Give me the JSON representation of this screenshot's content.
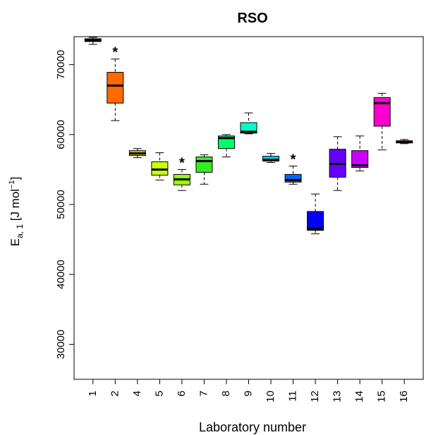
{
  "chart_data": {
    "type": "box",
    "title": "RSO",
    "xlabel": "Laboratory number",
    "ylabel_main": "E",
    "ylabel_sub": "a, 1",
    "ylabel_unit_open": " [J mol",
    "ylabel_unit_sup": "−1",
    "ylabel_unit_close": "]",
    "ylim": [
      25000,
      74000
    ],
    "yticks": [
      30000,
      40000,
      50000,
      60000,
      70000
    ],
    "ytick_labels": [
      "30000",
      "40000",
      "50000",
      "60000",
      "70000"
    ],
    "categories": [
      "1",
      "2",
      "4",
      "5",
      "6",
      "7",
      "8",
      "9",
      "10",
      "11",
      "12",
      "13",
      "14",
      "15",
      "16"
    ],
    "boxes": [
      {
        "lab": "1",
        "color": "#d8000c",
        "whisker_low": 72900,
        "q1": 73300,
        "median": 73500,
        "q3": 73700,
        "whisker_high": 73900,
        "flag": ""
      },
      {
        "lab": "2",
        "color": "#ff6a00",
        "whisker_low": 62000,
        "q1": 64500,
        "median": 67000,
        "q3": 68900,
        "whisker_high": 70800,
        "flag": "*"
      },
      {
        "lab": "4",
        "color": "#d6bf1c",
        "whisker_low": 56700,
        "q1": 57000,
        "median": 57300,
        "q3": 57700,
        "whisker_high": 58000,
        "flag": ""
      },
      {
        "lab": "5",
        "color": "#ccff00",
        "whisker_low": 53500,
        "q1": 54200,
        "median": 55000,
        "q3": 56100,
        "whisker_high": 57400,
        "flag": ""
      },
      {
        "lab": "6",
        "color": "#99ff00",
        "whisker_low": 52000,
        "q1": 52800,
        "median": 53600,
        "q3": 54300,
        "whisker_high": 55000,
        "flag": "*"
      },
      {
        "lab": "7",
        "color": "#33ee22",
        "whisker_low": 52900,
        "q1": 54600,
        "median": 56200,
        "q3": 56800,
        "whisker_high": 57100,
        "flag": ""
      },
      {
        "lab": "8",
        "color": "#00ff66",
        "whisker_low": 56800,
        "q1": 58000,
        "median": 59500,
        "q3": 59800,
        "whisker_high": 60000,
        "flag": ""
      },
      {
        "lab": "9",
        "color": "#00ffcc",
        "whisker_low": 60100,
        "q1": 60200,
        "median": 60400,
        "q3": 61700,
        "whisker_high": 63100,
        "flag": ""
      },
      {
        "lab": "10",
        "color": "#00ccff",
        "whisker_low": 56000,
        "q1": 56200,
        "median": 56400,
        "q3": 56900,
        "whisker_high": 57300,
        "flag": ""
      },
      {
        "lab": "11",
        "color": "#0066ff",
        "whisker_low": 52900,
        "q1": 53200,
        "median": 53500,
        "q3": 54300,
        "whisker_high": 55500,
        "flag": "*"
      },
      {
        "lab": "12",
        "color": "#0000ff",
        "whisker_low": 45800,
        "q1": 46300,
        "median": 46500,
        "q3": 49000,
        "whisker_high": 51500,
        "flag": ""
      },
      {
        "lab": "13",
        "color": "#6600ff",
        "whisker_low": 52000,
        "q1": 53900,
        "median": 55800,
        "q3": 57900,
        "whisker_high": 59700,
        "flag": ""
      },
      {
        "lab": "14",
        "color": "#cc00ff",
        "whisker_low": 54800,
        "q1": 55300,
        "median": 55600,
        "q3": 57700,
        "whisker_high": 59800,
        "flag": ""
      },
      {
        "lab": "15",
        "color": "#ff00cc",
        "whisker_low": 57800,
        "q1": 61200,
        "median": 64500,
        "q3": 65300,
        "whisker_high": 65900,
        "flag": ""
      },
      {
        "lab": "16",
        "color": "#ff0066",
        "whisker_low": 58700,
        "q1": 58800,
        "median": 59000,
        "q3": 59100,
        "whisker_high": 59300,
        "flag": ""
      }
    ]
  }
}
